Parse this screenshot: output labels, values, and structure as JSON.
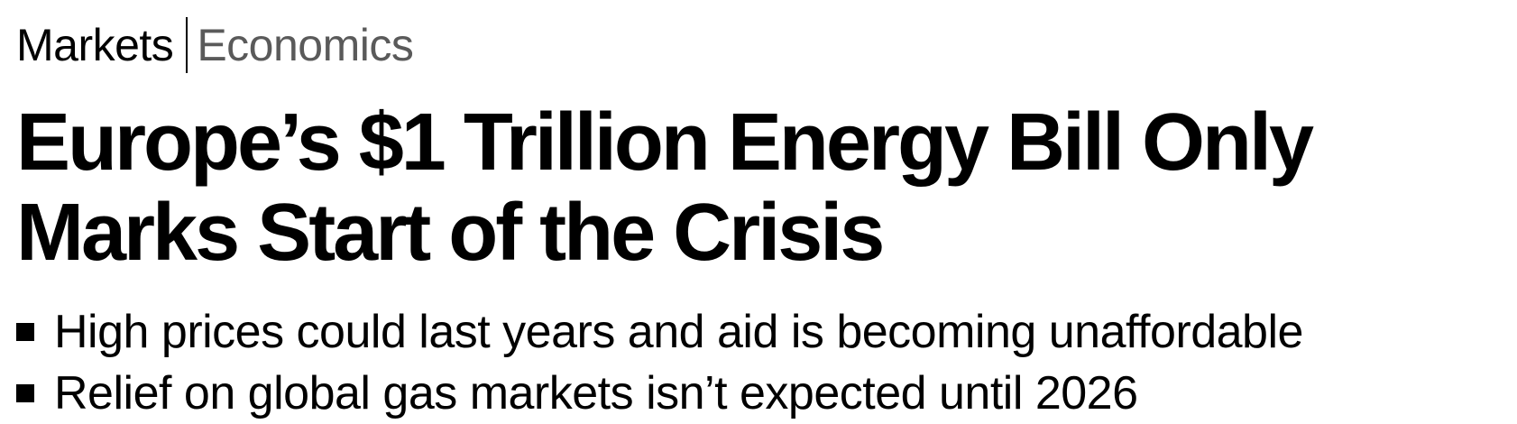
{
  "breadcrumb": {
    "primary": "Markets",
    "secondary": "Economics"
  },
  "article": {
    "headline_line1": "Europe’s $1 Trillion Energy Bill Only",
    "headline_line2": "Marks Start of the Crisis",
    "bullets": [
      "High prices could last years and aid is becoming unaffordable",
      "Relief on global gas markets isn’t expected until 2026"
    ]
  },
  "colors": {
    "text": "#000000",
    "secondary_text": "#5a5a5a",
    "background": "#ffffff"
  },
  "icons": {
    "bullet": "square-bullet-icon"
  }
}
